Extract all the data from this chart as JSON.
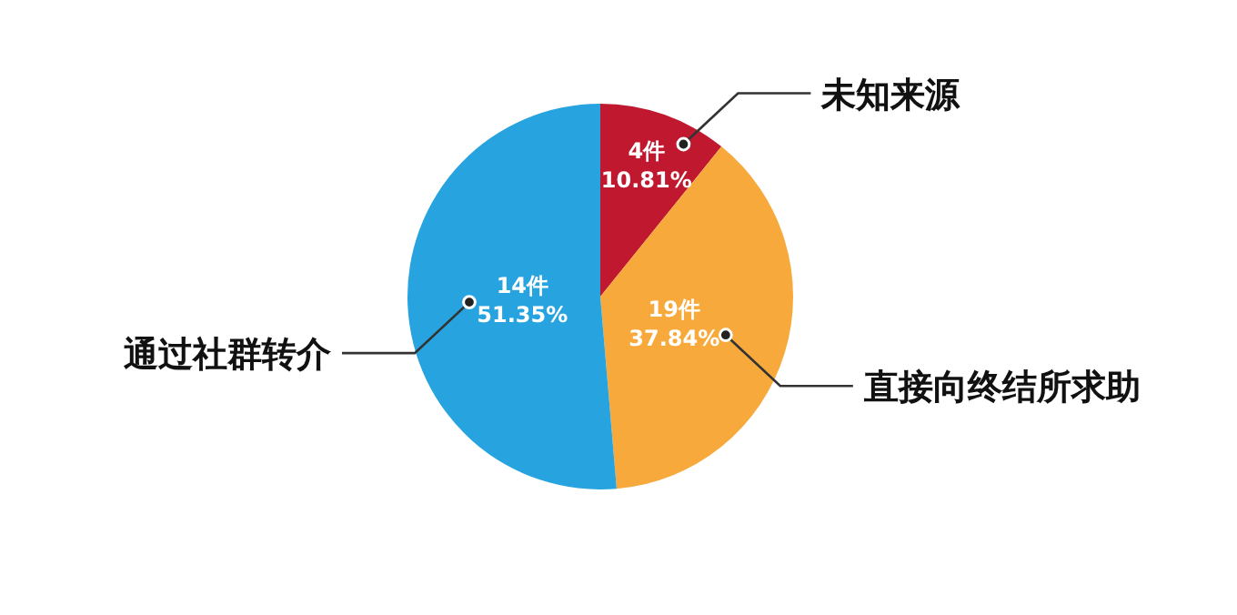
{
  "chart_data": {
    "type": "pie",
    "categories": [
      "未知来源",
      "直接向终结所求助",
      "通过社群转介"
    ],
    "values": [
      10.81,
      37.84,
      51.35
    ],
    "colors": [
      "#c0182f",
      "#f7a93b",
      "#27a3df"
    ],
    "value_labels": [
      "4件\n10.81%",
      "19件\n37.84%",
      "14件\n51.35%"
    ]
  }
}
